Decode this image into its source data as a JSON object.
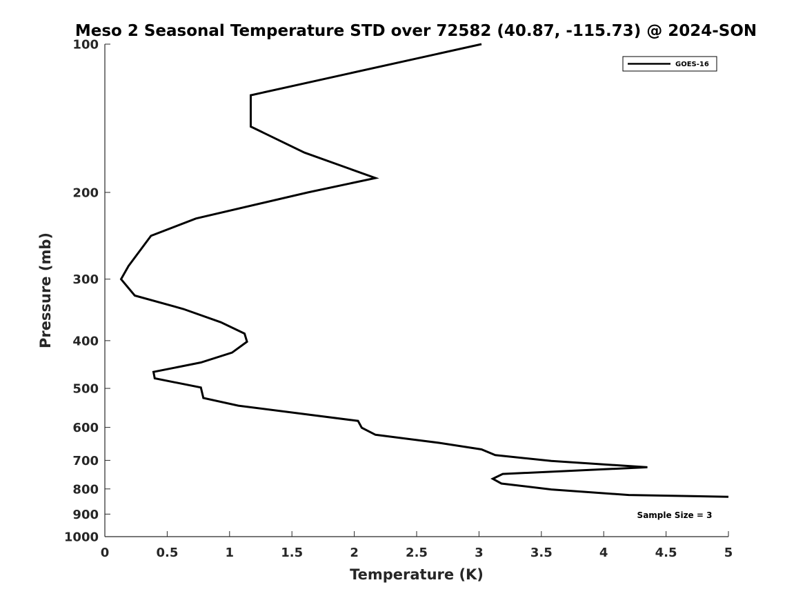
{
  "chart_data": {
    "type": "line",
    "title": "Meso 2 Seasonal Temperature STD over 72582 (40.87, -115.73) @ 2024-SON",
    "xlabel": "Temperature (K)",
    "ylabel": "Pressure (mb)",
    "xlim": [
      0,
      5
    ],
    "ylim": [
      100,
      1000
    ],
    "yscale": "log",
    "y_inverted": true,
    "xticks": [
      0,
      0.5,
      1,
      1.5,
      2,
      2.5,
      3,
      3.5,
      4,
      4.5,
      5
    ],
    "xtick_labels": [
      "0",
      "0.5",
      "1",
      "1.5",
      "2",
      "2.5",
      "3",
      "3.5",
      "4",
      "4.5",
      "5"
    ],
    "yticks": [
      100,
      200,
      300,
      400,
      500,
      600,
      700,
      800,
      900,
      1000
    ],
    "ytick_labels": [
      "100",
      "200",
      "300",
      "400",
      "500",
      "600",
      "700",
      "800",
      "900",
      "1000"
    ],
    "grid": false,
    "legend_position": "top-right",
    "annotation": "Sample Size = 3",
    "line_color": "#000000",
    "series": [
      {
        "name": "GOES-16",
        "x": [
          3.02,
          1.17,
          1.17,
          1.6,
          2.17,
          1.63,
          0.73,
          0.37,
          0.19,
          0.13,
          0.24,
          0.63,
          0.93,
          1.12,
          1.14,
          1.02,
          0.77,
          0.39,
          0.4,
          0.77,
          0.79,
          1.07,
          2.03,
          2.06,
          2.17,
          2.68,
          3.02,
          3.13,
          3.58,
          4.35,
          3.19,
          3.11,
          3.18,
          3.58,
          4.2,
          5.0
        ],
        "y": [
          100,
          127,
          147,
          166,
          187,
          200,
          226,
          245,
          282,
          300,
          324,
          345,
          367,
          387,
          402,
          423,
          443,
          463,
          477,
          498,
          523,
          542,
          582,
          601,
          621,
          645,
          665,
          683,
          702,
          723,
          746,
          763,
          780,
          802,
          823,
          830
        ]
      }
    ]
  }
}
